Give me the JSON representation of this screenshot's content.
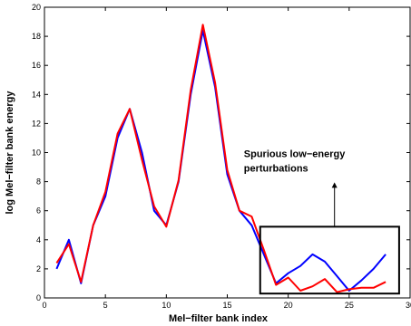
{
  "chart_data": {
    "type": "line",
    "xlabel": "Mel−filter bank index",
    "ylabel": "log Mel−filter bank energy",
    "xlim": [
      0,
      30
    ],
    "ylim": [
      0,
      20
    ],
    "xticks": [
      0,
      5,
      10,
      15,
      20,
      25,
      30
    ],
    "yticks": [
      0,
      2,
      4,
      6,
      8,
      10,
      12,
      14,
      16,
      18,
      20
    ],
    "grid": false,
    "series": [
      {
        "color": "#0000ff",
        "x": [
          1,
          2,
          3,
          4,
          5,
          6,
          7,
          8,
          9,
          10,
          11,
          12,
          13,
          14,
          15,
          16,
          17,
          18,
          19,
          20,
          21,
          22,
          23,
          24,
          25,
          26,
          27,
          28
        ],
        "y": [
          2.0,
          4.0,
          1.0,
          5.0,
          7.0,
          11.0,
          13.0,
          10.0,
          6.0,
          5.0,
          8.0,
          14.0,
          18.4,
          14.5,
          8.5,
          6.0,
          5.0,
          3.0,
          1.0,
          1.7,
          2.2,
          3.0,
          2.5,
          1.5,
          0.5,
          1.2,
          2.0,
          3.0
        ]
      },
      {
        "color": "#ff0000",
        "x": [
          1,
          2,
          3,
          4,
          5,
          6,
          7,
          8,
          9,
          10,
          11,
          12,
          13,
          14,
          15,
          16,
          17,
          18,
          19,
          20,
          21,
          22,
          23,
          24,
          25,
          26,
          27,
          28
        ],
        "y": [
          2.4,
          3.7,
          1.1,
          5.0,
          7.3,
          11.3,
          13.0,
          9.5,
          6.3,
          4.9,
          8.1,
          14.3,
          18.8,
          14.8,
          8.8,
          6.0,
          5.6,
          3.3,
          0.9,
          1.4,
          0.5,
          0.8,
          1.3,
          0.4,
          0.6,
          0.7,
          0.7,
          1.1
        ]
      }
    ],
    "annotation": {
      "lines": [
        "Spurious low−energy",
        "perturbations"
      ],
      "box_x": [
        17.7,
        29.1
      ],
      "box_y": [
        0.3,
        4.9
      ]
    }
  }
}
